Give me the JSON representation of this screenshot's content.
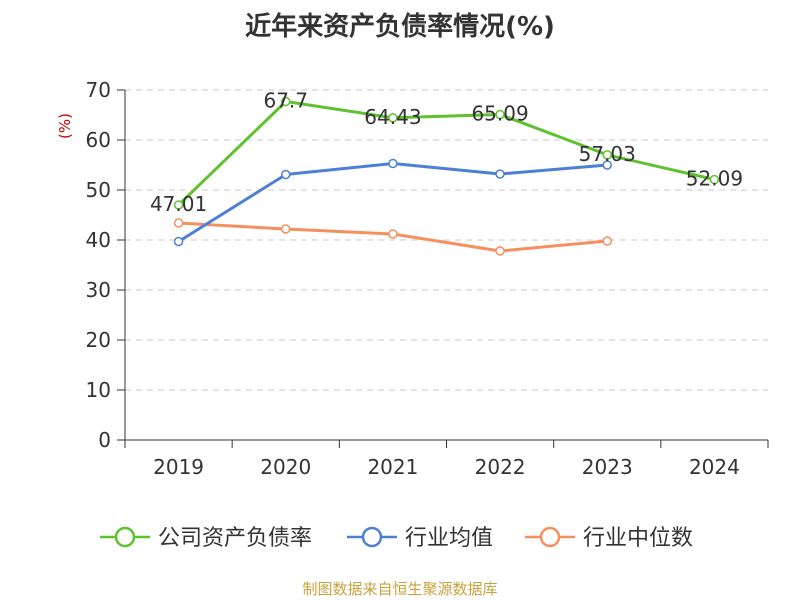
{
  "chart_data": {
    "type": "line",
    "title": "近年来资产负债率情况(%)",
    "ylabel": "(%)",
    "xlabel": "",
    "categories": [
      "2019",
      "2020",
      "2021",
      "2022",
      "2023",
      "2024"
    ],
    "ylim": [
      0,
      70
    ],
    "yticks": [
      0,
      10,
      20,
      30,
      40,
      50,
      60,
      70
    ],
    "grid": true,
    "legend_position": "bottom",
    "series": [
      {
        "name": "公司资产负债率",
        "color": "#5dc22e",
        "values": [
          47.01,
          67.7,
          64.43,
          65.09,
          57.03,
          52.09
        ],
        "labels": [
          "47.01",
          "67.7",
          "64.43",
          "65.09",
          "57.03",
          "52.09"
        ]
      },
      {
        "name": "行业均值",
        "color": "#4e7fd6",
        "values": [
          39.7,
          53.1,
          55.3,
          53.2,
          55.0,
          null
        ]
      },
      {
        "name": "行业中位数",
        "color": "#f5905e",
        "values": [
          43.4,
          42.2,
          41.2,
          37.8,
          39.8,
          null
        ]
      }
    ]
  },
  "source": "制图数据来自恒生聚源数据库"
}
